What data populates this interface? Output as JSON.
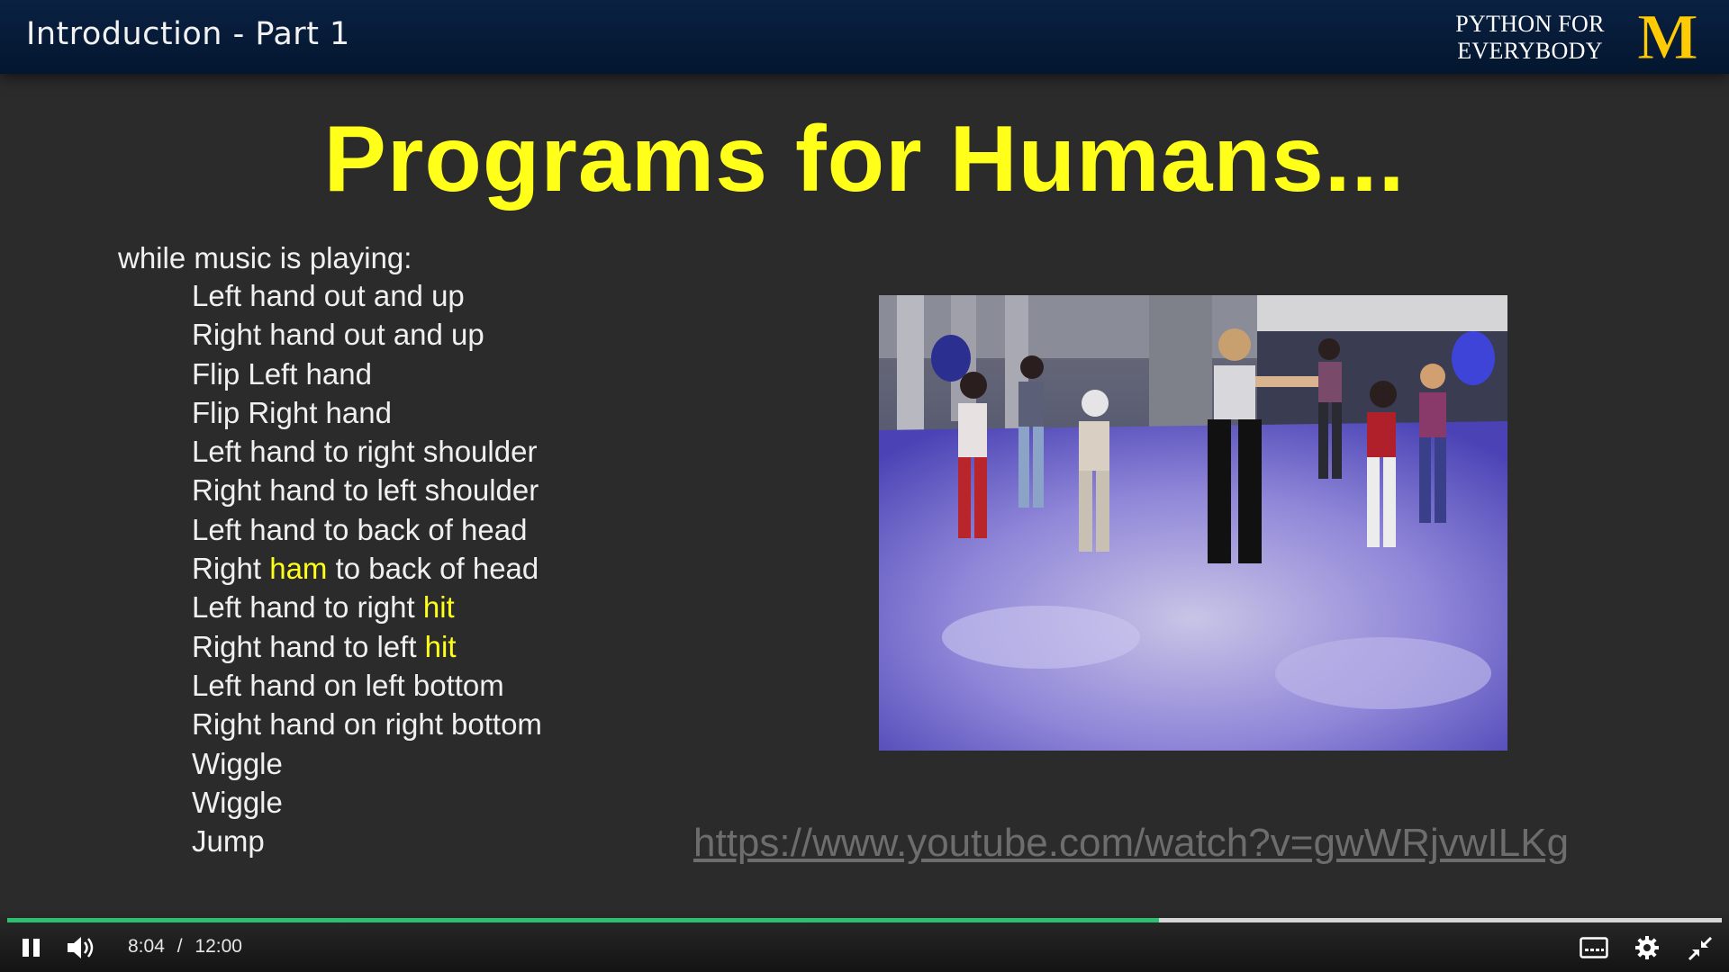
{
  "header": {
    "lecture_title": "Introduction - Part 1",
    "brand_text_line1": "PYTHON FOR",
    "brand_text_line2": "EVERYBODY",
    "brand_logo_letter": "M"
  },
  "slide": {
    "title": "Programs for Humans...",
    "lead_line": "while music is playing:",
    "lines": [
      {
        "pre": "Left hand out and up",
        "hl": "",
        "post": ""
      },
      {
        "pre": "Right hand out and up",
        "hl": "",
        "post": ""
      },
      {
        "pre": "Flip Left hand",
        "hl": "",
        "post": ""
      },
      {
        "pre": "Flip Right hand",
        "hl": "",
        "post": ""
      },
      {
        "pre": "Left hand to right shoulder",
        "hl": "",
        "post": ""
      },
      {
        "pre": "Right hand to left shoulder",
        "hl": "",
        "post": ""
      },
      {
        "pre": "Left hand to back of head",
        "hl": "",
        "post": ""
      },
      {
        "pre": "Right ",
        "hl": "ham",
        "post": " to back of head"
      },
      {
        "pre": "Left hand to right ",
        "hl": "hit",
        "post": ""
      },
      {
        "pre": "Right hand to left ",
        "hl": "hit",
        "post": ""
      },
      {
        "pre": "Left hand on left bottom",
        "hl": "",
        "post": ""
      },
      {
        "pre": "Right hand on right bottom",
        "hl": "",
        "post": ""
      },
      {
        "pre": "Wiggle",
        "hl": "",
        "post": ""
      },
      {
        "pre": "Wiggle",
        "hl": "",
        "post": ""
      },
      {
        "pre": "Jump",
        "hl": "",
        "post": ""
      }
    ],
    "url": "https://www.youtube.com/watch?v=gwWRjvwILKg"
  },
  "player": {
    "current_time": "8:04",
    "separator": "/",
    "duration": "12:00",
    "progress_fraction": 0.672,
    "icons": {
      "play_pause": "pause-icon",
      "volume": "volume-icon",
      "captions": "captions-icon",
      "settings": "gear-icon",
      "fullscreen": "exit-fullscreen-icon"
    }
  },
  "colors": {
    "accent_yellow": "#ffff1a",
    "michigan_maize": "#ffcb05",
    "header_navy": "#04162f",
    "progress_green": "#2fbf71",
    "slide_bg": "#2b2b2b"
  }
}
